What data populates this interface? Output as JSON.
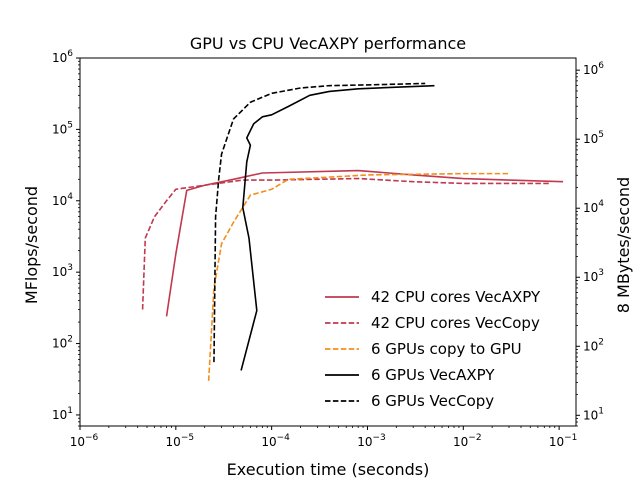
{
  "chart_data": {
    "type": "line",
    "title": "GPU vs CPU VecAXPY performance",
    "xlabel": "Execution time (seconds)",
    "ylabel": "MFlops/second",
    "ylabel_right": "8 MBytes/second",
    "x_scale": "log",
    "y_scale": "log",
    "xlim": [
      1e-06,
      0.15
    ],
    "ylim": [
      7,
      1000000.0
    ],
    "ylim_right": [
      7,
      1500000.0
    ],
    "legend_position": "lower right",
    "x_ticks": [
      {
        "value": 1e-06,
        "mant": "10",
        "exp": "−6"
      },
      {
        "value": 1e-05,
        "mant": "10",
        "exp": "−5"
      },
      {
        "value": 0.0001,
        "mant": "10",
        "exp": "−4"
      },
      {
        "value": 0.001,
        "mant": "10",
        "exp": "−3"
      },
      {
        "value": 0.01,
        "mant": "10",
        "exp": "−2"
      },
      {
        "value": 0.1,
        "mant": "10",
        "exp": "−1"
      }
    ],
    "y_ticks": [
      {
        "value": 10,
        "mant": "10",
        "exp": "1"
      },
      {
        "value": 100,
        "mant": "10",
        "exp": "2"
      },
      {
        "value": 1000,
        "mant": "10",
        "exp": "3"
      },
      {
        "value": 10000,
        "mant": "10",
        "exp": "4"
      },
      {
        "value": 100000,
        "mant": "10",
        "exp": "5"
      },
      {
        "value": 1000000,
        "mant": "10",
        "exp": "6"
      }
    ],
    "y_ticks_right": [
      {
        "value": 10,
        "mant": "10",
        "exp": "1"
      },
      {
        "value": 100,
        "mant": "10",
        "exp": "2"
      },
      {
        "value": 1000,
        "mant": "10",
        "exp": "3"
      },
      {
        "value": 10000,
        "mant": "10",
        "exp": "4"
      },
      {
        "value": 100000,
        "mant": "10",
        "exp": "5"
      },
      {
        "value": 1000000,
        "mant": "10",
        "exp": "6"
      }
    ],
    "series": [
      {
        "name": "42 CPU cores VecAXPY",
        "color": "#c0394f",
        "dash": "solid",
        "x": [
          8e-06,
          1e-05,
          1.3e-05,
          2e-05,
          4e-05,
          8e-05,
          0.0008,
          0.003,
          0.01,
          0.03,
          0.11
        ],
        "y": [
          240,
          1800,
          14000,
          16500,
          20000,
          24500,
          26500,
          23000,
          20500,
          19500,
          18500
        ]
      },
      {
        "name": "42 CPU cores VecCopy",
        "color": "#c0394f",
        "dash": "dashed",
        "x": [
          4.5e-06,
          4.8e-06,
          6e-06,
          8e-06,
          1e-05,
          2e-05,
          5e-05,
          0.0001,
          0.0003,
          0.0008,
          0.003,
          0.01,
          0.03,
          0.08
        ],
        "y": [
          300,
          3000,
          6000,
          10000,
          14500,
          16500,
          19500,
          19500,
          20000,
          20500,
          18500,
          17500,
          17500,
          17500
        ]
      },
      {
        "name": "6 GPUs copy to GPU",
        "color": "#f28e1c",
        "dash": "dashed",
        "x": [
          2.2e-05,
          2.5e-05,
          3e-05,
          4e-05,
          6e-05,
          0.0001,
          0.00015,
          0.0003,
          0.001,
          0.003,
          0.01,
          0.03
        ],
        "y": [
          30,
          600,
          2500,
          5000,
          12000,
          14500,
          20000,
          21000,
          23000,
          23500,
          24000,
          24000
        ]
      },
      {
        "name": "6 GPUs VecAXPY",
        "color": "#000000",
        "dash": "solid",
        "x": [
          4.8e-05,
          7e-05,
          5.8e-05,
          5e-05,
          5.5e-05,
          6e-05,
          5.5e-05,
          6.5e-05,
          8e-05,
          0.0001,
          0.00015,
          0.00025,
          0.0004,
          0.0008,
          0.002,
          0.005
        ],
        "y": [
          42,
          290,
          3000,
          8000,
          35000,
          60000,
          76000,
          120000,
          150000,
          160000,
          210000,
          300000,
          340000,
          370000,
          390000,
          410000
        ]
      },
      {
        "name": "6 GPUs VecCopy",
        "color": "#000000",
        "dash": "dashed",
        "x": [
          2.5e-05,
          2.6e-05,
          2.8e-05,
          3e-05,
          4e-05,
          6e-05,
          0.0001,
          0.0002,
          0.0004,
          0.001,
          0.004
        ],
        "y": [
          55,
          6000,
          20000,
          45000,
          140000,
          240000,
          320000,
          380000,
          410000,
          420000,
          440000
        ]
      }
    ]
  }
}
